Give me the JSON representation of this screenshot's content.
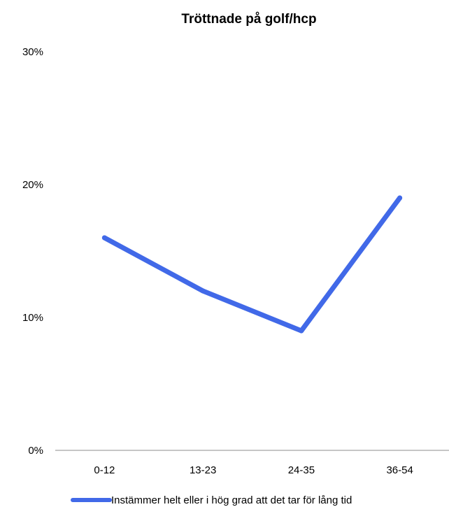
{
  "chart_data": {
    "type": "line",
    "title": "Tröttnade på golf/hcp",
    "xlabel": "",
    "ylabel": "",
    "categories": [
      "0-12",
      "13-23",
      "24-35",
      "36-54"
    ],
    "y_ticks": [
      "0%",
      "10%",
      "20%",
      "30%"
    ],
    "ylim": [
      0,
      30
    ],
    "y_unit": "%",
    "grid": false,
    "legend_position": "bottom",
    "series": [
      {
        "name": "Instämmer helt eller i hög grad att det tar för lång tid",
        "color": "#4169e8",
        "values": [
          16,
          12,
          9,
          19
        ]
      }
    ]
  }
}
